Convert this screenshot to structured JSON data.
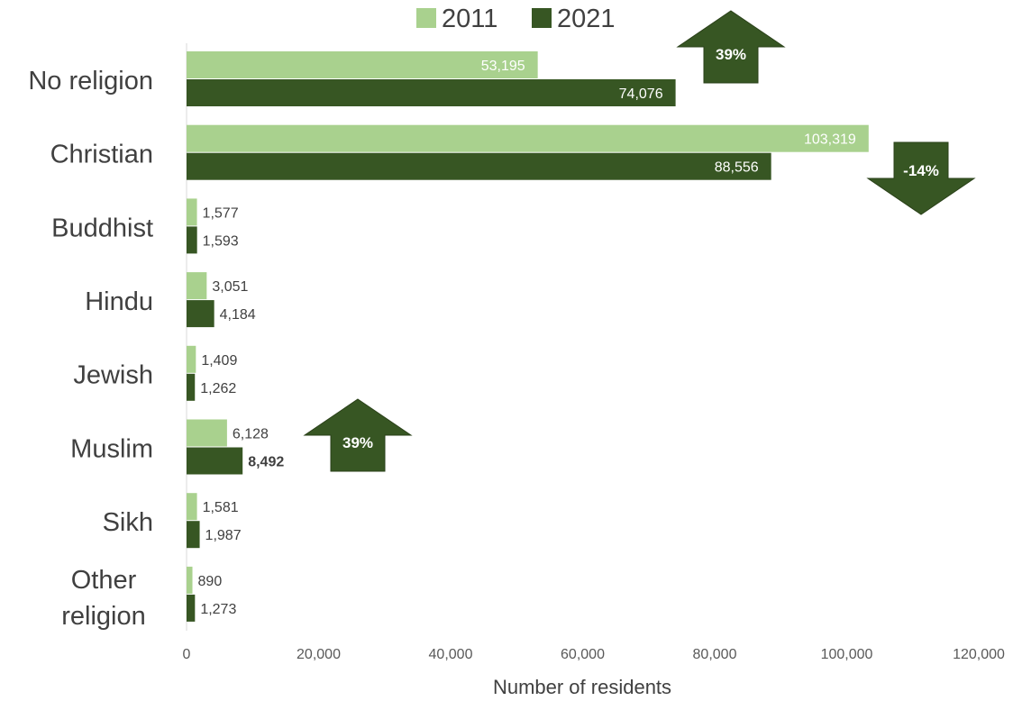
{
  "chart_data": {
    "type": "bar",
    "orientation": "horizontal",
    "categories": [
      "No religion",
      "Christian",
      "Buddhist",
      "Hindu",
      "Jewish",
      "Muslim",
      "Sikh",
      "Other religion"
    ],
    "series": [
      {
        "name": "2011",
        "color": "#a9d18e",
        "values": [
          53195,
          103319,
          1577,
          3051,
          1409,
          6128,
          1581,
          890
        ],
        "labels": [
          "53,195",
          "103,319",
          "1,577",
          "3,051",
          "1,409",
          "6,128",
          "1,581",
          "890"
        ]
      },
      {
        "name": "2021",
        "color": "#375623",
        "values": [
          74076,
          88556,
          1593,
          4184,
          1262,
          8492,
          1987,
          1273
        ],
        "labels": [
          "74,076",
          "88,556",
          "1,593",
          "4,184",
          "1,262",
          "8,492",
          "1,987",
          "1,273"
        ]
      }
    ],
    "xlabel": "Number of residents",
    "xlim": [
      0,
      120000
    ],
    "xticks": [
      0,
      20000,
      40000,
      60000,
      80000,
      100000,
      120000
    ],
    "xtick_labels": [
      "0",
      "20,000",
      "40,000",
      "60,000",
      "80,000",
      "100,000",
      "120,000"
    ],
    "grid": false,
    "legend_position": "top",
    "annotations": [
      {
        "category": "No religion",
        "direction": "up",
        "text": "39%"
      },
      {
        "category": "Christian",
        "direction": "down",
        "text": "-14%"
      },
      {
        "category": "Muslim",
        "direction": "up",
        "text": "39%"
      }
    ]
  }
}
